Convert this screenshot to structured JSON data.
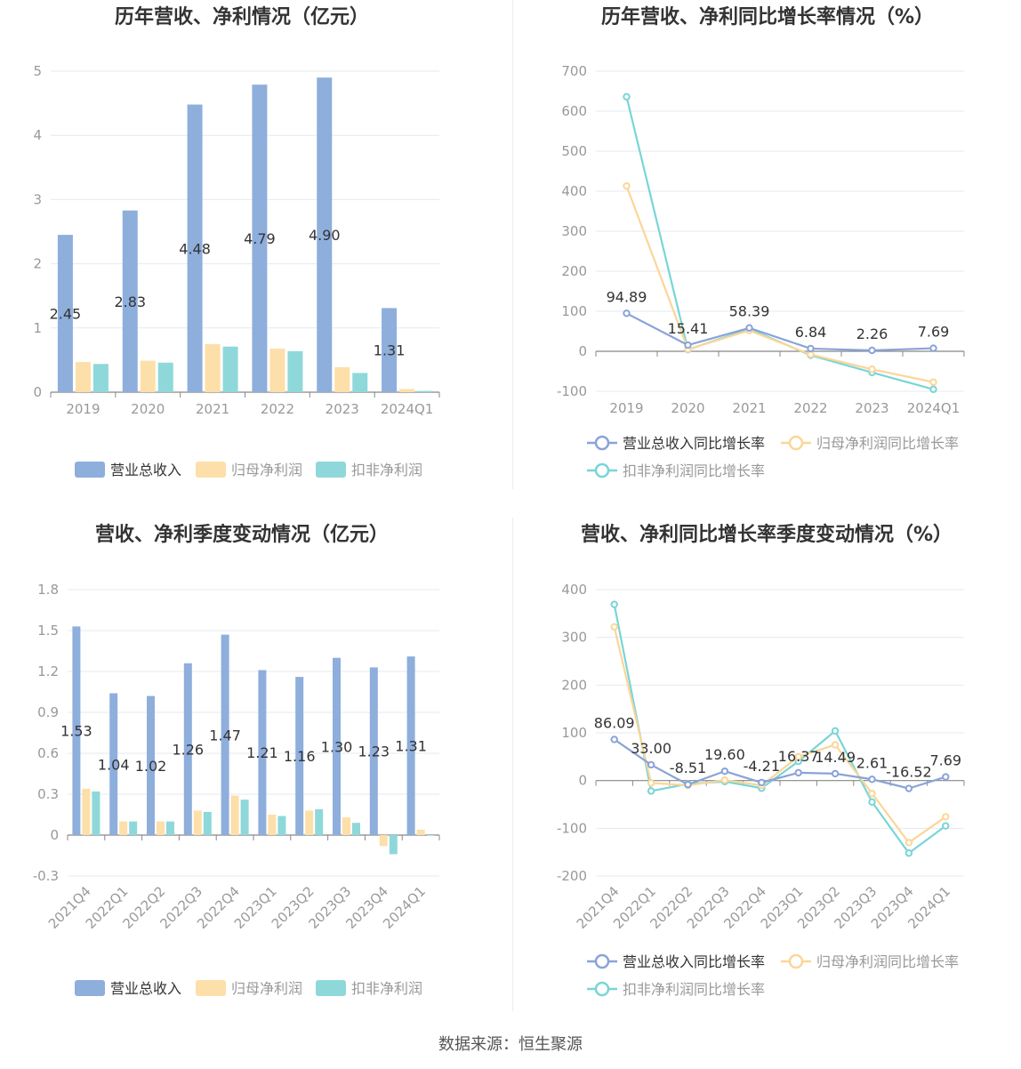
{
  "footer": "数据来源：恒生聚源",
  "colors": {
    "revenue": "#8eaedc",
    "net_profit": "#fddfa9",
    "deducted": "#8ed8da",
    "revenue_line": "#8aa3d8",
    "net_profit_line": "#fbd699",
    "deducted_line": "#79d5d6",
    "grid": "#e6e9f0",
    "axis_text": "#999999",
    "label_text": "#333333"
  },
  "chart_data": [
    {
      "type": "bar",
      "title": "历年营收、净利情况（亿元）",
      "categories": [
        "2019",
        "2020",
        "2021",
        "2022",
        "2023",
        "2024Q1"
      ],
      "ylim": [
        0,
        5
      ],
      "yticks": [
        0,
        1,
        2,
        3,
        4,
        5
      ],
      "series": [
        {
          "name": "营业总收入",
          "values": [
            2.45,
            2.83,
            4.48,
            4.79,
            4.9,
            1.31
          ],
          "labels": [
            "2.45",
            "2.83",
            "4.48",
            "4.79",
            "4.90",
            "1.31"
          ]
        },
        {
          "name": "归母净利润",
          "values": [
            0.47,
            0.49,
            0.75,
            0.68,
            0.39,
            0.05
          ]
        },
        {
          "name": "扣非净利润",
          "values": [
            0.44,
            0.46,
            0.71,
            0.64,
            0.3,
            0.02
          ]
        }
      ],
      "legend": "bottom",
      "grid": true
    },
    {
      "type": "line",
      "title": "历年营收、净利同比增长率情况（%）",
      "categories": [
        "2019",
        "2020",
        "2021",
        "2022",
        "2023",
        "2024Q1"
      ],
      "ylim": [
        -100,
        700
      ],
      "yticks": [
        -100,
        0,
        100,
        200,
        300,
        400,
        500,
        600,
        700
      ],
      "series": [
        {
          "name": "营业总收入同比增长率",
          "values": [
            94.89,
            15.41,
            58.39,
            6.84,
            2.26,
            7.69
          ],
          "labels": [
            "94.89",
            "15.41",
            "58.39",
            "6.84",
            "2.26",
            "7.69"
          ]
        },
        {
          "name": "归母净利润同比增长率",
          "values": [
            413,
            5,
            52,
            -8,
            -45,
            -77
          ]
        },
        {
          "name": "扣非净利润同比增长率",
          "values": [
            636,
            4,
            56,
            -10,
            -53,
            -95
          ]
        }
      ],
      "legend": "bottom",
      "grid": true
    },
    {
      "type": "bar",
      "title": "营收、净利季度变动情况（亿元）",
      "categories": [
        "2021Q4",
        "2022Q1",
        "2022Q2",
        "2022Q3",
        "2022Q4",
        "2023Q1",
        "2023Q2",
        "2023Q3",
        "2023Q4",
        "2024Q1"
      ],
      "ylim": [
        -0.3,
        1.8
      ],
      "yticks": [
        -0.3,
        0,
        0.3,
        0.6,
        0.9,
        1.2,
        1.5,
        1.8
      ],
      "series": [
        {
          "name": "营业总收入",
          "values": [
            1.53,
            1.04,
            1.02,
            1.26,
            1.47,
            1.21,
            1.16,
            1.3,
            1.23,
            1.31
          ],
          "labels": [
            "1.53",
            "1.04",
            "1.02",
            "1.26",
            "1.47",
            "1.21",
            "1.16",
            "1.30",
            "1.23",
            "1.31"
          ]
        },
        {
          "name": "归母净利润",
          "values": [
            0.34,
            0.1,
            0.1,
            0.18,
            0.29,
            0.15,
            0.18,
            0.13,
            -0.08,
            0.04
          ]
        },
        {
          "name": "扣非净利润",
          "values": [
            0.32,
            0.1,
            0.1,
            0.17,
            0.26,
            0.14,
            0.19,
            0.09,
            -0.14,
            0.0
          ]
        }
      ],
      "legend": "bottom",
      "grid": true
    },
    {
      "type": "line",
      "title": "营收、净利同比增长率季度变动情况（%）",
      "categories": [
        "2021Q4",
        "2022Q1",
        "2022Q2",
        "2022Q3",
        "2022Q4",
        "2023Q1",
        "2023Q2",
        "2023Q3",
        "2023Q4",
        "2024Q1"
      ],
      "ylim": [
        -200,
        400
      ],
      "yticks": [
        -200,
        -100,
        0,
        100,
        200,
        300,
        400
      ],
      "series": [
        {
          "name": "营业总收入同比增长率",
          "values": [
            86.09,
            33.0,
            -8.51,
            19.6,
            -4.21,
            16.37,
            14.49,
            2.61,
            -16.52,
            7.69
          ],
          "labels": [
            "86.09",
            "33.00",
            "-8.51",
            "19.60",
            "-4.21",
            "16.37",
            "14.49",
            "2.61",
            "-16.52",
            "7.69"
          ]
        },
        {
          "name": "归母净利润同比增长率",
          "values": [
            322,
            -5,
            -10,
            1,
            -10,
            50,
            75,
            -27,
            -130,
            -76
          ]
        },
        {
          "name": "扣非净利润同比增长率",
          "values": [
            369,
            -22,
            -7,
            -2,
            -16,
            40,
            104,
            -45,
            -152,
            -95
          ]
        }
      ],
      "legend": "bottom",
      "grid": true
    }
  ]
}
